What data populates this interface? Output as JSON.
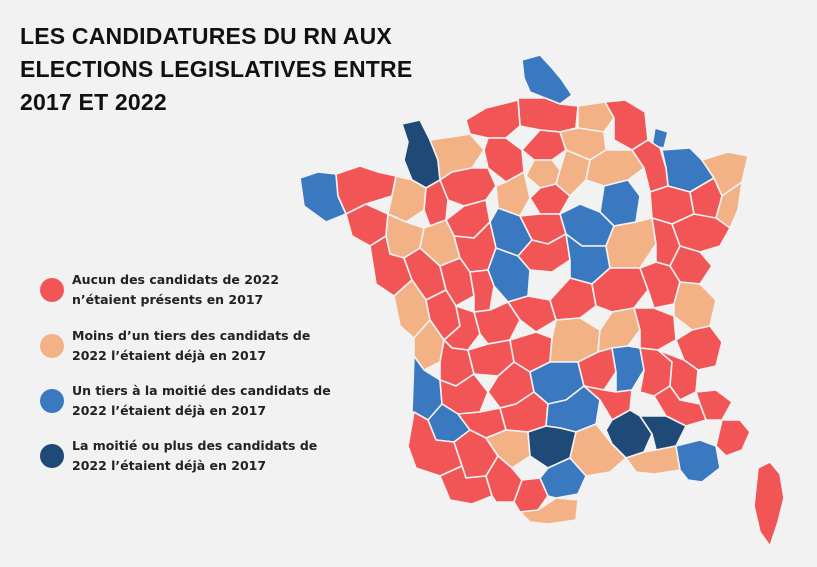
{
  "title": {
    "line1": "LES CANDIDATURES DU RN AUX",
    "line2": "ELECTIONS LEGISLATIVES ENTRE",
    "line3": "2017 ET 2022"
  },
  "legend": [
    {
      "line1": "Aucun des candidats de 2022",
      "line2": "n’étaient présents en 2017",
      "color": "#f25555"
    },
    {
      "line1": "Moins d’un tiers des candidats de",
      "line2": "2022 l’étaient déjà en 2017",
      "color": "#f2b286"
    },
    {
      "line1": "Un tiers à la moitié des candidats de",
      "line2": "2022 l’étaient déjà en 2017",
      "color": "#3a78bf"
    },
    {
      "line1": "La moitié ou plus des candidats de",
      "line2": "2022 l’étaient déjà en 2017",
      "color": "#1f4a78"
    }
  ],
  "colors": {
    "none": "#f25555",
    "low": "#f2b286",
    "mid": "#3a78bf",
    "high": "#1f4a78",
    "background": "#f2f2f2",
    "border": "#f2f2f2"
  }
}
